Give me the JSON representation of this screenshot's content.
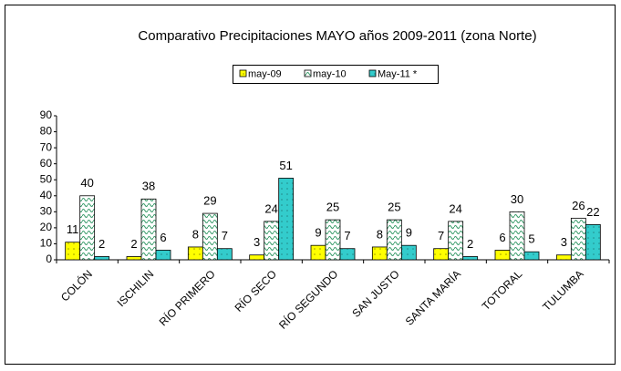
{
  "chart_data": {
    "type": "bar",
    "title": "Comparativo Precipitaciones MAYO años 2009-2011 (zona Norte)",
    "categories": [
      "COLÓN",
      "ISCHILIN",
      "RÍO PRIMERO",
      "RÍO SECO",
      "RÍO SEGUNDO",
      "SAN JUSTO",
      "SANTA MARÍA",
      "TOTORAL",
      "TULUMBA"
    ],
    "series": [
      {
        "name": "may-09",
        "color": "#ffff00",
        "values": [
          11,
          2,
          8,
          3,
          9,
          8,
          7,
          6,
          3
        ]
      },
      {
        "name": "may-10",
        "color": "#ffffff",
        "values": [
          40,
          38,
          29,
          24,
          25,
          25,
          24,
          30,
          26
        ]
      },
      {
        "name": "May-11 *",
        "color": "#33cccc",
        "values": [
          2,
          6,
          7,
          51,
          7,
          9,
          2,
          5,
          22
        ]
      }
    ],
    "ylim": [
      0,
      90
    ],
    "yticks": [
      0,
      10,
      20,
      30,
      40,
      50,
      60,
      70,
      80,
      90
    ],
    "legend": "top",
    "grid": false
  }
}
